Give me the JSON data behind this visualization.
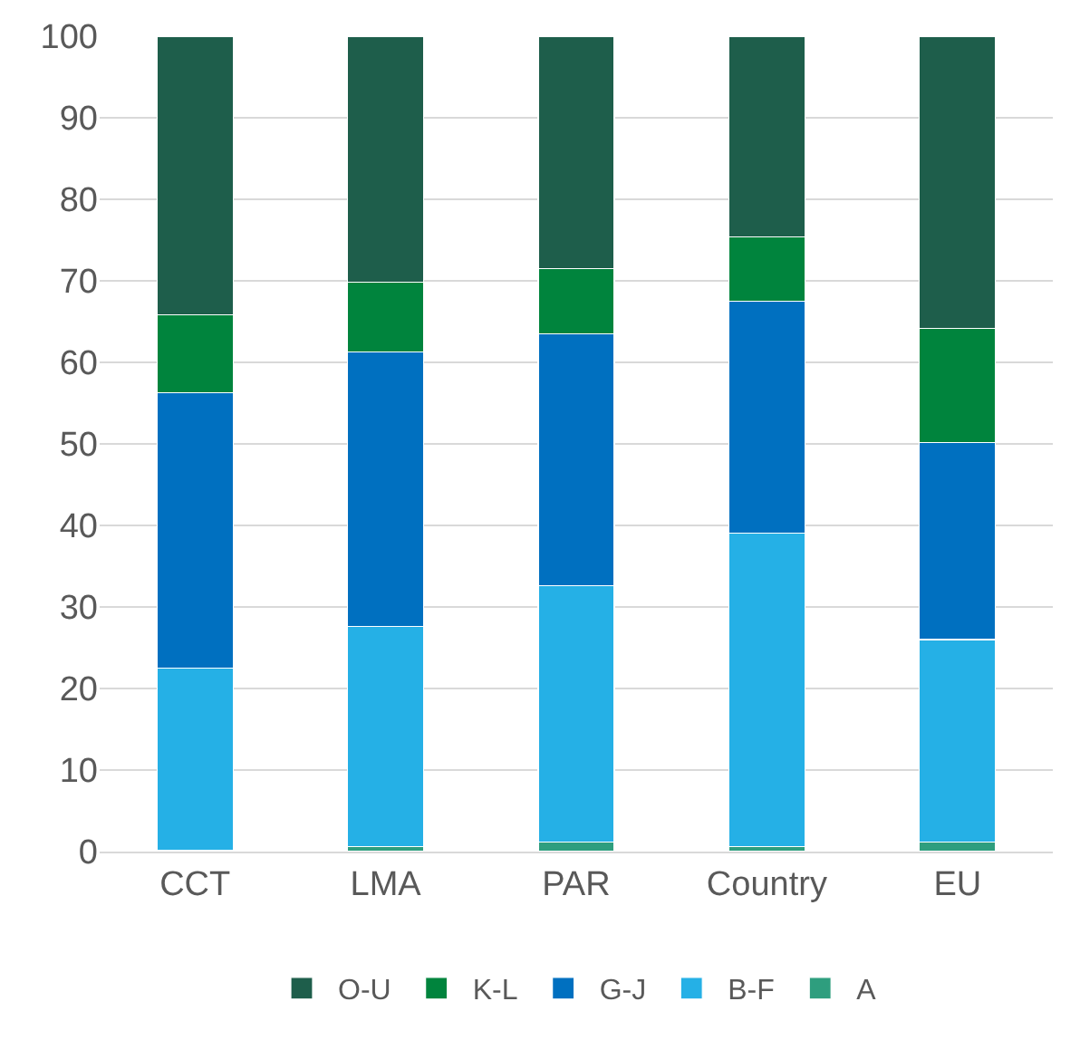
{
  "chart_data": {
    "type": "bar",
    "stacked": true,
    "categories": [
      "CCT",
      "LMA",
      "PAR",
      "Country",
      "EU"
    ],
    "series": [
      {
        "name": "A",
        "color": "#2e9e7e",
        "values": [
          0.2,
          0.6,
          1.2,
          0.6,
          1.2
        ]
      },
      {
        "name": "B-F",
        "color": "#25b0e6",
        "values": [
          22.3,
          27.0,
          31.4,
          38.5,
          24.8
        ]
      },
      {
        "name": "G-J",
        "color": "#0070c0",
        "values": [
          33.8,
          33.7,
          30.9,
          28.4,
          24.2
        ]
      },
      {
        "name": "K-L",
        "color": "#00843d",
        "values": [
          9.5,
          8.5,
          8.0,
          7.9,
          14.0
        ]
      },
      {
        "name": "O-U",
        "color": "#1e5e4b",
        "values": [
          34.2,
          30.2,
          28.5,
          24.6,
          35.8
        ]
      }
    ],
    "ylim": [
      0,
      100
    ],
    "yticks": [
      0,
      10,
      20,
      30,
      40,
      50,
      60,
      70,
      80,
      90,
      100
    ],
    "grid": "y",
    "legend": "bottom"
  }
}
